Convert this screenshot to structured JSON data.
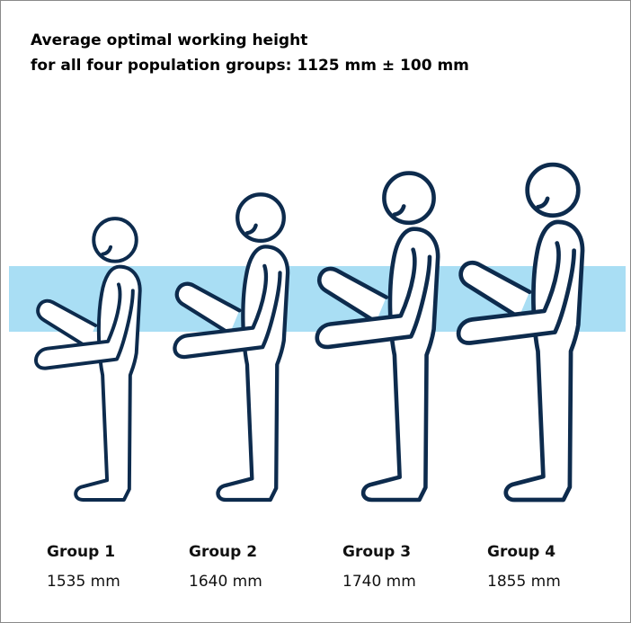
{
  "title": [
    "Average optimal working height",
    "for all four population groups: 1125 mm ± 100 mm"
  ],
  "groups": [
    {
      "name": "Group 1",
      "height": "1535 mm"
    },
    {
      "name": "Group 2",
      "height": "1640 mm"
    },
    {
      "name": "Group 3",
      "height": "1740 mm"
    },
    {
      "name": "Group 4",
      "height": "1855 mm"
    }
  ]
}
